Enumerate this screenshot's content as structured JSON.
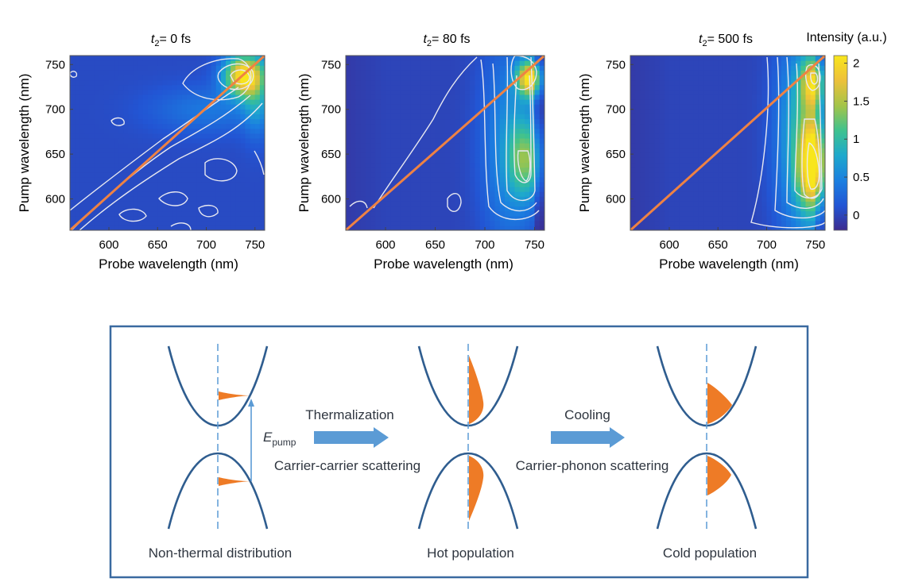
{
  "figure": {
    "colorbar": {
      "label": "Intensity (a.u.)",
      "ticks": [
        "2",
        "1.5",
        "1",
        "0.5",
        "0"
      ],
      "range": [
        -0.2,
        2.1
      ],
      "colors": [
        "#3d2b8e",
        "#2255d4",
        "#1b7ee0",
        "#1ea9cc",
        "#3ec28f",
        "#a2c44a",
        "#eec13a",
        "#f8e61c"
      ]
    },
    "panels": [
      {
        "title_prefix": "t",
        "title_sub": "2",
        "title_rest": "= 0 fs",
        "xlabel": "Probe wavelength (nm)",
        "ylabel": "Pump wavelength (nm)"
      },
      {
        "title_prefix": "t",
        "title_sub": "2",
        "title_rest": "= 80 fs",
        "xlabel": "Probe wavelength (nm)",
        "ylabel": "Pump wavelength (nm)"
      },
      {
        "title_prefix": "t",
        "title_sub": "2",
        "title_rest": "= 500 fs",
        "xlabel": "Probe wavelength (nm)",
        "ylabel": "Pump wavelength (nm)"
      }
    ],
    "diagonal_color": "#ef8243",
    "contour_color": "#e8e8f0"
  },
  "chart_data": [
    {
      "type": "heatmap",
      "title": "t2= 0 fs",
      "xlabel": "Probe wavelength (nm)",
      "ylabel": "Pump wavelength (nm)",
      "xlim": [
        560,
        760
      ],
      "ylim": [
        565,
        760
      ],
      "xticks": [
        600,
        650,
        700,
        750
      ],
      "yticks": [
        600,
        650,
        700,
        750
      ],
      "colorbar_label": "Intensity (a.u.)",
      "colorbar_range": [
        -0.2,
        2.1
      ],
      "diagonal": [
        [
          560,
          565
        ],
        [
          760,
          760
        ]
      ],
      "peaks": [
        {
          "probe": 738,
          "pump": 738,
          "intensity": 2.0,
          "sx": 14,
          "sy": 16
        },
        {
          "probe": 752,
          "pump": 715,
          "intensity": 0.6,
          "sx": 10,
          "sy": 30
        },
        {
          "probe": 700,
          "pump": 700,
          "intensity": 0.35,
          "sx": 40,
          "sy": 18
        }
      ],
      "background": 0.05
    },
    {
      "type": "heatmap",
      "title": "t2= 80 fs",
      "xlabel": "Probe wavelength (nm)",
      "ylabel": "Pump wavelength (nm)",
      "xlim": [
        560,
        760
      ],
      "ylim": [
        565,
        760
      ],
      "xticks": [
        600,
        650,
        700,
        750
      ],
      "yticks": [
        600,
        650,
        700,
        750
      ],
      "colorbar_label": "Intensity (a.u.)",
      "colorbar_range": [
        -0.2,
        2.1
      ],
      "diagonal": [
        [
          560,
          565
        ],
        [
          760,
          760
        ]
      ],
      "peaks": [
        {
          "probe": 745,
          "pump": 735,
          "intensity": 1.9,
          "sx": 9,
          "sy": 14
        },
        {
          "probe": 742,
          "pump": 645,
          "intensity": 1.0,
          "sx": 12,
          "sy": 30
        },
        {
          "probe": 725,
          "pump": 660,
          "intensity": 0.6,
          "sx": 20,
          "sy": 80
        }
      ],
      "background": 0.0
    },
    {
      "type": "heatmap",
      "title": "t2= 500 fs",
      "xlabel": "Probe wavelength (nm)",
      "ylabel": "Pump wavelength (nm)",
      "xlim": [
        560,
        760
      ],
      "ylim": [
        565,
        760
      ],
      "xticks": [
        600,
        650,
        700,
        750
      ],
      "yticks": [
        600,
        650,
        700,
        750
      ],
      "colorbar_label": "Intensity (a.u.)",
      "colorbar_range": [
        -0.2,
        2.1
      ],
      "diagonal": [
        [
          560,
          565
        ],
        [
          760,
          760
        ]
      ],
      "peaks": [
        {
          "probe": 748,
          "pump": 640,
          "intensity": 2.0,
          "sx": 10,
          "sy": 35
        },
        {
          "probe": 748,
          "pump": 730,
          "intensity": 1.5,
          "sx": 9,
          "sy": 20
        },
        {
          "probe": 735,
          "pump": 670,
          "intensity": 0.9,
          "sx": 18,
          "sy": 80
        }
      ],
      "background": 0.0
    }
  ],
  "diagram": {
    "stages": [
      {
        "caption": "Non-thermal distribution"
      },
      {
        "caption": "Hot population"
      },
      {
        "caption": "Cold population"
      }
    ],
    "arrow1": {
      "top_label": "Thermalization",
      "bottom_label": "Carrier-carrier scattering"
    },
    "arrow2": {
      "top_label": "Cooling",
      "bottom_label": "Carrier-phonon scattering"
    },
    "energy_label": "E",
    "energy_sub": "pump",
    "band_color": "#2f5d8f",
    "fill_color": "#ee7b26",
    "arrow_color": "#5b9bd5",
    "box_border": "#3a6aa0"
  }
}
